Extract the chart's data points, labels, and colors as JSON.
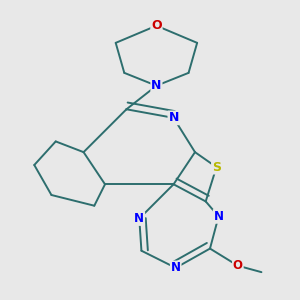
{
  "background_color": "#e8e8e8",
  "bond_color": "#2d6e6e",
  "atom_colors": {
    "N": "#0000ff",
    "O": "#cc0000",
    "S": "#b8b800",
    "C": "#2d6e6e"
  },
  "figsize": [
    3.0,
    3.0
  ],
  "dpi": 100
}
